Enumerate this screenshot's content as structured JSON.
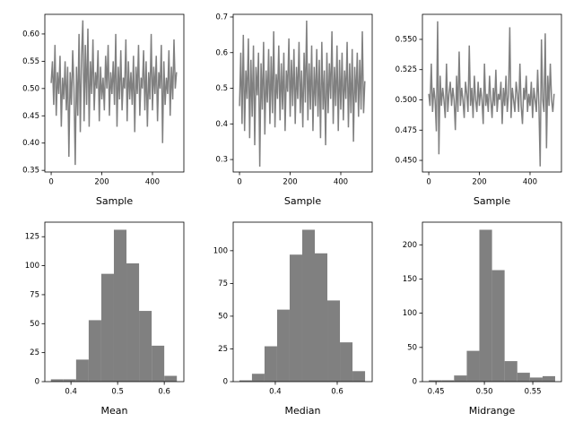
{
  "chart_data": [
    {
      "type": "line",
      "xlabel": "Sample",
      "color": "#808080",
      "x": [
        0,
        5,
        10,
        15,
        20,
        25,
        30,
        35,
        40,
        45,
        50,
        55,
        60,
        65,
        70,
        75,
        80,
        85,
        90,
        95,
        100,
        105,
        110,
        115,
        120,
        125,
        130,
        135,
        140,
        145,
        150,
        155,
        160,
        165,
        170,
        175,
        180,
        185,
        190,
        195,
        200,
        205,
        210,
        215,
        220,
        225,
        230,
        235,
        240,
        245,
        250,
        255,
        260,
        265,
        270,
        275,
        280,
        285,
        290,
        295,
        300,
        305,
        310,
        315,
        320,
        325,
        330,
        335,
        340,
        345,
        350,
        355,
        360,
        365,
        370,
        375,
        380,
        385,
        390,
        395,
        400,
        405,
        410,
        415,
        420,
        425,
        430,
        435,
        440,
        445,
        450,
        455,
        460,
        465,
        470,
        475,
        480,
        485,
        490,
        495
      ],
      "values": [
        0.51,
        0.55,
        0.47,
        0.58,
        0.45,
        0.53,
        0.49,
        0.56,
        0.43,
        0.52,
        0.48,
        0.55,
        0.46,
        0.54,
        0.375,
        0.53,
        0.47,
        0.57,
        0.5,
        0.36,
        0.54,
        0.45,
        0.6,
        0.42,
        0.56,
        0.625,
        0.44,
        0.58,
        0.47,
        0.61,
        0.43,
        0.55,
        0.49,
        0.59,
        0.46,
        0.53,
        0.5,
        0.57,
        0.44,
        0.54,
        0.48,
        0.52,
        0.46,
        0.56,
        0.5,
        0.58,
        0.45,
        0.53,
        0.49,
        0.55,
        0.47,
        0.6,
        0.43,
        0.54,
        0.48,
        0.57,
        0.46,
        0.52,
        0.5,
        0.59,
        0.44,
        0.55,
        0.48,
        0.53,
        0.47,
        0.56,
        0.42,
        0.54,
        0.49,
        0.58,
        0.45,
        0.52,
        0.5,
        0.57,
        0.46,
        0.55,
        0.43,
        0.53,
        0.48,
        0.6,
        0.46,
        0.54,
        0.49,
        0.56,
        0.44,
        0.53,
        0.5,
        0.58,
        0.4,
        0.55,
        0.47,
        0.52,
        0.49,
        0.57,
        0.45,
        0.54,
        0.48,
        0.59,
        0.5,
        0.53
      ],
      "xlim": [
        -25,
        524
      ],
      "xticks": [
        0,
        200,
        400
      ],
      "ylim": [
        0.347,
        0.636
      ],
      "yticks": [
        0.35,
        {
          "value": 0.4,
          "label": "0.40"
        },
        0.45,
        {
          "value": 0.5,
          "label": "0.50"
        },
        0.55,
        {
          "value": 0.6,
          "label": "0.60"
        }
      ]
    },
    {
      "type": "line",
      "xlabel": "Sample",
      "color": "#808080",
      "x": [
        0,
        5,
        10,
        15,
        20,
        25,
        30,
        35,
        40,
        45,
        50,
        55,
        60,
        65,
        70,
        75,
        80,
        85,
        90,
        95,
        100,
        105,
        110,
        115,
        120,
        125,
        130,
        135,
        140,
        145,
        150,
        155,
        160,
        165,
        170,
        175,
        180,
        185,
        190,
        195,
        200,
        205,
        210,
        215,
        220,
        225,
        230,
        235,
        240,
        245,
        250,
        255,
        260,
        265,
        270,
        275,
        280,
        285,
        290,
        295,
        300,
        305,
        310,
        315,
        320,
        325,
        330,
        335,
        340,
        345,
        350,
        355,
        360,
        365,
        370,
        375,
        380,
        385,
        390,
        395,
        400,
        405,
        410,
        415,
        420,
        425,
        430,
        435,
        440,
        445,
        450,
        455,
        460,
        465,
        470,
        475,
        480,
        485,
        490,
        495
      ],
      "values": [
        0.45,
        0.6,
        0.4,
        0.65,
        0.38,
        0.55,
        0.47,
        0.64,
        0.36,
        0.58,
        0.42,
        0.62,
        0.34,
        0.56,
        0.48,
        0.6,
        0.28,
        0.57,
        0.44,
        0.63,
        0.37,
        0.55,
        0.46,
        0.61,
        0.4,
        0.59,
        0.43,
        0.66,
        0.39,
        0.54,
        0.47,
        0.62,
        0.41,
        0.57,
        0.44,
        0.6,
        0.38,
        0.55,
        0.49,
        0.64,
        0.42,
        0.58,
        0.45,
        0.61,
        0.4,
        0.56,
        0.47,
        0.63,
        0.43,
        0.55,
        0.39,
        0.6,
        0.46,
        0.69,
        0.41,
        0.57,
        0.44,
        0.62,
        0.38,
        0.56,
        0.45,
        0.61,
        0.42,
        0.58,
        0.36,
        0.63,
        0.44,
        0.55,
        0.34,
        0.6,
        0.43,
        0.57,
        0.47,
        0.66,
        0.4,
        0.56,
        0.45,
        0.62,
        0.38,
        0.58,
        0.44,
        0.6,
        0.41,
        0.55,
        0.47,
        0.63,
        0.39,
        0.57,
        0.43,
        0.61,
        0.35,
        0.56,
        0.46,
        0.6,
        0.42,
        0.58,
        0.44,
        0.66,
        0.43,
        0.52
      ],
      "xlim": [
        -25,
        524
      ],
      "xticks": [
        0,
        200,
        400
      ],
      "ylim": [
        0.265,
        0.7075
      ],
      "yticks": [
        0.3,
        0.4,
        0.5,
        0.6,
        0.7
      ]
    },
    {
      "type": "line",
      "xlabel": "Sample",
      "color": "#808080",
      "x": [
        0,
        5,
        10,
        15,
        20,
        25,
        30,
        35,
        40,
        45,
        50,
        55,
        60,
        65,
        70,
        75,
        80,
        85,
        90,
        95,
        100,
        105,
        110,
        115,
        120,
        125,
        130,
        135,
        140,
        145,
        150,
        155,
        160,
        165,
        170,
        175,
        180,
        185,
        190,
        195,
        200,
        205,
        210,
        215,
        220,
        225,
        230,
        235,
        240,
        245,
        250,
        255,
        260,
        265,
        270,
        275,
        280,
        285,
        290,
        295,
        300,
        305,
        310,
        315,
        320,
        325,
        330,
        335,
        340,
        345,
        350,
        355,
        360,
        365,
        370,
        375,
        380,
        385,
        390,
        395,
        400,
        405,
        410,
        415,
        420,
        425,
        430,
        435,
        440,
        445,
        450,
        455,
        460,
        465,
        470,
        475,
        480,
        485,
        490,
        495
      ],
      "values": [
        0.505,
        0.495,
        0.53,
        0.49,
        0.51,
        0.5,
        0.474,
        0.565,
        0.455,
        0.52,
        0.495,
        0.51,
        0.5,
        0.485,
        0.53,
        0.49,
        0.505,
        0.515,
        0.495,
        0.51,
        0.5,
        0.475,
        0.52,
        0.49,
        0.54,
        0.495,
        0.51,
        0.5,
        0.485,
        0.515,
        0.505,
        0.49,
        0.545,
        0.495,
        0.51,
        0.485,
        0.52,
        0.5,
        0.49,
        0.515,
        0.495,
        0.51,
        0.5,
        0.48,
        0.53,
        0.495,
        0.505,
        0.49,
        0.52,
        0.5,
        0.485,
        0.51,
        0.495,
        0.525,
        0.49,
        0.505,
        0.5,
        0.515,
        0.48,
        0.51,
        0.495,
        0.52,
        0.49,
        0.505,
        0.56,
        0.485,
        0.51,
        0.5,
        0.49,
        0.515,
        0.505,
        0.49,
        0.53,
        0.495,
        0.48,
        0.51,
        0.5,
        0.52,
        0.49,
        0.505,
        0.495,
        0.515,
        0.485,
        0.51,
        0.5,
        0.49,
        0.525,
        0.495,
        0.445,
        0.55,
        0.5,
        0.49,
        0.555,
        0.46,
        0.52,
        0.495,
        0.53,
        0.5,
        0.49,
        0.505
      ],
      "xlim": [
        -25,
        524
      ],
      "xticks": [
        0,
        200,
        400
      ],
      "ylim": [
        0.4404,
        0.5707
      ],
      "yticks": [
        {
          "value": 0.45,
          "label": "0.450"
        },
        0.475,
        {
          "value": 0.5,
          "label": "0.500"
        },
        0.525,
        {
          "value": 0.55,
          "label": "0.550"
        }
      ]
    },
    {
      "type": "histogram",
      "xlabel": "Mean",
      "color": "#808080",
      "bins": [
        0.357,
        0.384,
        0.411,
        0.438,
        0.465,
        0.492,
        0.519,
        0.546,
        0.573,
        0.6,
        0.627
      ],
      "values": [
        2,
        2,
        19,
        53,
        93,
        131,
        102,
        61,
        31,
        5
      ],
      "xlim": [
        0.344,
        0.642
      ],
      "xticks": [
        0.4,
        0.5,
        0.6
      ],
      "ylim": [
        0,
        137.55
      ],
      "yticks": [
        0,
        25,
        50,
        75,
        100,
        125
      ]
    },
    {
      "type": "histogram",
      "xlabel": "Median",
      "color": "#808080",
      "bins": [
        0.284,
        0.3246,
        0.3652,
        0.4058,
        0.4464,
        0.487,
        0.5276,
        0.5682,
        0.6088,
        0.6494,
        0.69
      ],
      "values": [
        1,
        6,
        27,
        55,
        97,
        116,
        98,
        62,
        30,
        8
      ],
      "xlim": [
        0.264,
        0.713
      ],
      "xticks": [
        0.4,
        0.6
      ],
      "ylim": [
        0,
        121.8
      ],
      "yticks": [
        0,
        25,
        50,
        75,
        100
      ]
    },
    {
      "type": "histogram",
      "xlabel": "Midrange",
      "color": "#808080",
      "bins": [
        0.4426,
        0.4557,
        0.4687,
        0.4818,
        0.4948,
        0.5079,
        0.5209,
        0.534,
        0.547,
        0.5601,
        0.5731
      ],
      "values": [
        2,
        2,
        9,
        45,
        222,
        163,
        30,
        13,
        6,
        8
      ],
      "xlim": [
        0.436,
        0.5796
      ],
      "xticks": [
        0.45,
        {
          "value": 0.5,
          "label": "0.50"
        },
        0.55
      ],
      "ylim": [
        0,
        233.1
      ],
      "yticks": [
        0,
        50,
        100,
        150,
        200
      ]
    }
  ]
}
